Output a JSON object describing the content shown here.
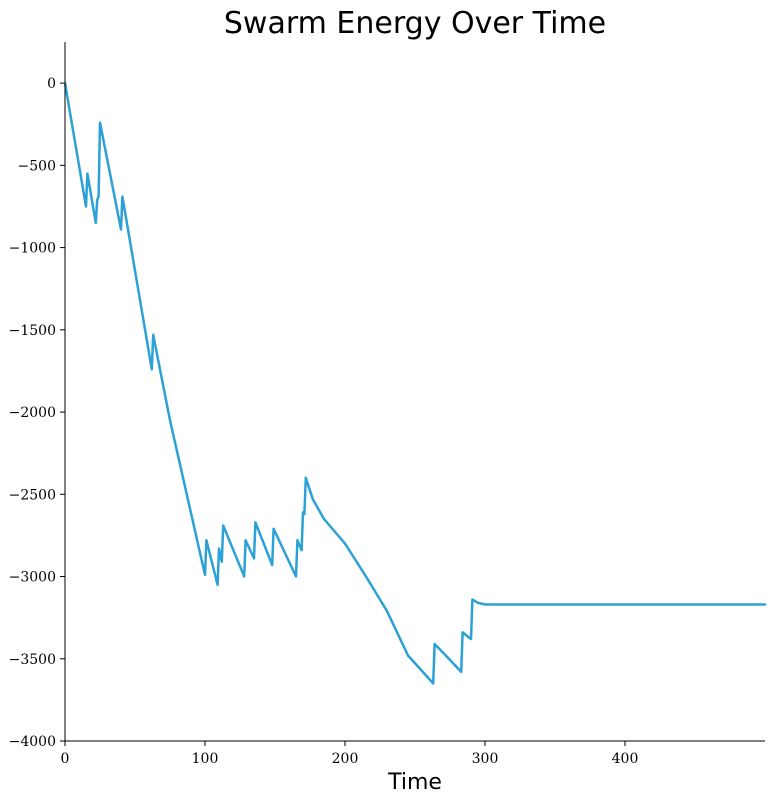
{
  "chart_data": {
    "type": "line",
    "title": "Swarm Energy Over Time",
    "xlabel": "Time",
    "ylabel": "",
    "xlim": [
      0,
      500
    ],
    "ylim": [
      -4000,
      250
    ],
    "xticks": [
      0,
      100,
      200,
      300,
      400
    ],
    "yticks": [
      -4000,
      -3500,
      -3000,
      -2500,
      -2000,
      -1500,
      -1000,
      -500,
      0
    ],
    "grid": false,
    "legend": "none",
    "colors": {
      "line": "#2ca1d6",
      "axis": "#000000"
    },
    "series": [
      {
        "x": [
          0,
          15,
          16,
          22,
          23,
          24,
          25,
          40,
          41,
          62,
          63,
          75,
          100,
          101,
          109,
          110,
          112,
          113,
          128,
          129,
          135,
          136,
          148,
          149,
          165,
          166,
          169,
          170,
          171,
          172,
          177,
          185,
          200,
          215,
          230,
          245,
          263,
          264,
          272,
          283,
          284,
          290,
          291,
          295,
          300,
          400,
          500
        ],
        "y": [
          0,
          -750,
          -550,
          -850,
          -710,
          -690,
          -240,
          -890,
          -690,
          -1740,
          -1530,
          -2050,
          -2990,
          -2780,
          -3050,
          -2830,
          -2910,
          -2690,
          -3000,
          -2780,
          -2890,
          -2670,
          -2930,
          -2710,
          -3000,
          -2780,
          -2840,
          -2610,
          -2620,
          -2400,
          -2530,
          -2650,
          -2800,
          -3000,
          -3210,
          -3480,
          -3650,
          -3410,
          -3480,
          -3580,
          -3340,
          -3380,
          -3140,
          -3160,
          -3170,
          -3170,
          -3170
        ]
      }
    ]
  }
}
